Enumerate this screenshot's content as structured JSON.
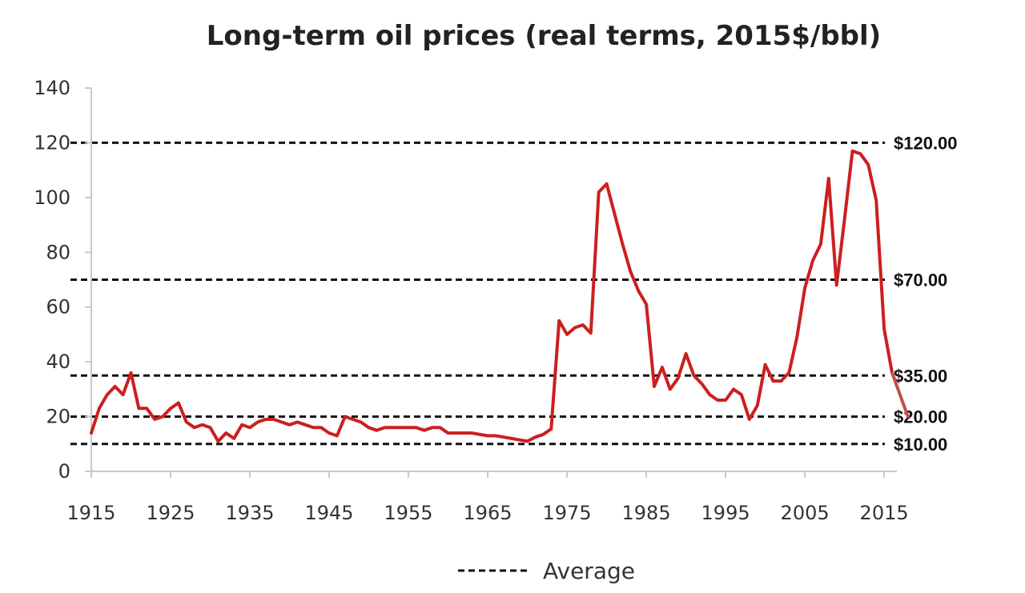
{
  "chart_data": {
    "type": "line",
    "title": "Long-term oil prices (real terms, 2015$/bbl)",
    "xlabel": "",
    "ylabel": "",
    "xlim": [
      1915,
      2018
    ],
    "ylim": [
      0,
      140
    ],
    "x_ticks": [
      "1915",
      "1925",
      "1935",
      "1945",
      "1955",
      "1965",
      "1975",
      "1985",
      "1995",
      "2005",
      "2015"
    ],
    "y_ticks": [
      "0",
      "20",
      "40",
      "60",
      "80",
      "100",
      "120",
      "140"
    ],
    "grid": false,
    "legend": {
      "position": "bottom",
      "entries": [
        "Average"
      ]
    },
    "series": [
      {
        "color": "#cc1f1f",
        "x": [
          1915,
          1916,
          1917,
          1918,
          1919,
          1920,
          1921,
          1922,
          1923,
          1924,
          1925,
          1926,
          1927,
          1928,
          1929,
          1930,
          1931,
          1932,
          1933,
          1934,
          1935,
          1936,
          1937,
          1938,
          1939,
          1940,
          1941,
          1942,
          1943,
          1944,
          1945,
          1946,
          1947,
          1948,
          1949,
          1950,
          1951,
          1952,
          1953,
          1954,
          1955,
          1956,
          1957,
          1958,
          1959,
          1960,
          1961,
          1962,
          1963,
          1964,
          1965,
          1966,
          1967,
          1968,
          1969,
          1970,
          1971,
          1972,
          1973,
          1974,
          1975,
          1976,
          1977,
          1978,
          1979,
          1980,
          1981,
          1982,
          1983,
          1984,
          1985,
          1986,
          1987,
          1988,
          1989,
          1990,
          1991,
          1992,
          1993,
          1994,
          1995,
          1996,
          1997,
          1998,
          1999,
          2000,
          2001,
          2002,
          2003,
          2004,
          2005,
          2006,
          2007,
          2008,
          2009,
          2010,
          2011,
          2012,
          2013,
          2014,
          2015,
          2016
        ],
        "values": [
          14,
          23,
          28,
          31,
          28,
          36,
          23,
          23,
          19,
          20,
          23,
          25,
          18,
          16,
          17,
          16,
          11,
          14,
          12,
          17,
          16,
          18,
          19,
          19,
          18,
          17,
          18,
          17,
          16,
          16,
          14,
          13,
          20,
          19,
          18,
          16,
          15,
          16,
          16,
          16,
          16,
          16,
          15,
          16,
          16,
          14,
          14,
          14,
          14,
          13.5,
          13,
          13,
          12.5,
          12,
          11.5,
          11,
          12.5,
          13.5,
          15.5,
          55,
          50,
          52.5,
          53.5,
          50.5,
          102,
          105,
          94,
          83,
          73,
          66,
          61,
          31,
          38,
          30,
          34,
          43,
          35,
          32,
          28,
          26,
          26,
          30,
          28,
          19,
          24,
          39,
          33,
          33,
          36,
          49,
          67,
          77,
          83,
          107,
          68,
          92,
          117,
          116,
          112,
          99,
          52,
          36
        ]
      },
      {
        "color": "#c0504d",
        "x": [
          2016,
          2018
        ],
        "values": [
          36,
          20
        ]
      }
    ],
    "reference_lines": [
      {
        "value": 120,
        "label": "$120.00"
      },
      {
        "value": 70,
        "label": "$70.00"
      },
      {
        "value": 35,
        "label": "$35.00"
      },
      {
        "value": 20,
        "label": "$20.00"
      },
      {
        "value": 10,
        "label": "$10.00"
      }
    ]
  }
}
